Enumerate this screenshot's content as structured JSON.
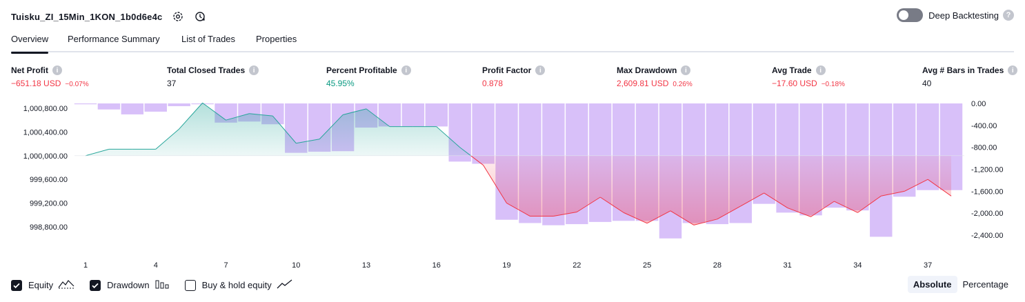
{
  "header": {
    "strategy_title": "Tuisku_ZI_15Min_1KON_1b0d6e4c"
  },
  "deep_backtesting": {
    "label": "Deep Backtesting",
    "help": "?"
  },
  "tabs": [
    {
      "label": "Overview"
    },
    {
      "label": "Performance Summary"
    },
    {
      "label": "List of Trades"
    },
    {
      "label": "Properties"
    }
  ],
  "stats": [
    {
      "label": "Net Profit",
      "value": "−651.18 USD",
      "pct": "−0.07%"
    },
    {
      "label": "Total Closed Trades",
      "value": "37",
      "pct": ""
    },
    {
      "label": "Percent Profitable",
      "value": "45.95%",
      "pct": ""
    },
    {
      "label": "Profit Factor",
      "value": "0.878",
      "pct": ""
    },
    {
      "label": "Max Drawdown",
      "value": "2,609.81 USD",
      "pct": "0.26%"
    },
    {
      "label": "Avg Trade",
      "value": "−17.60 USD",
      "pct": "−0.18%"
    },
    {
      "label": "Avg # Bars in Trades",
      "value": "40",
      "pct": ""
    }
  ],
  "info_glyph": "i",
  "colors": {
    "equity_up": "#26a69a",
    "equity_down": "#f23645",
    "drawdown_bar": "#c9a7f7",
    "value_negative": "#f23645",
    "value_positive": "#089981"
  },
  "chart_data": {
    "type": "line",
    "x_ticks": [
      "1",
      "4",
      "7",
      "10",
      "13",
      "16",
      "19",
      "22",
      "25",
      "28",
      "31",
      "34",
      "37"
    ],
    "left_axis": {
      "ticks": [
        "1,000,800.00",
        "1,000,400.00",
        "1,000,000.00",
        "999,600.00",
        "999,200.00",
        "998,800.00"
      ],
      "tick_values": [
        1000800,
        1000400,
        1000000,
        999600,
        999200,
        998800
      ]
    },
    "right_axis": {
      "ticks": [
        "0.00",
        "-400.00",
        "-800.00",
        "-1,200.00",
        "-1,600.00",
        "-2,000.00",
        "-2,400.00"
      ],
      "tick_values": [
        0,
        -400,
        -800,
        -1200,
        -1600,
        -2000,
        -2400
      ]
    },
    "series": [
      {
        "name": "Equity",
        "axis": "left",
        "x": [
          1,
          2,
          3,
          4,
          5,
          6,
          7,
          8,
          9,
          10,
          11,
          12,
          13,
          14,
          15,
          16,
          17,
          18,
          19,
          20,
          21,
          22,
          23,
          24,
          25,
          26,
          27,
          28,
          29,
          30,
          31,
          32,
          33,
          34,
          35,
          36,
          37,
          38
        ],
        "values": [
          1000000,
          1000110,
          1000110,
          1000110,
          1000450,
          1000890,
          1000600,
          1000710,
          1000670,
          1000210,
          1000280,
          1000690,
          1000790,
          1000490,
          1000490,
          1000490,
          1000140,
          999840,
          999200,
          998980,
          998980,
          999050,
          999300,
          999040,
          998860,
          999070,
          998830,
          998930,
          999150,
          999370,
          999120,
          998970,
          999230,
          999040,
          999320,
          999400,
          999600,
          999320
        ]
      },
      {
        "name": "Drawdown",
        "axis": "right",
        "x": [
          1,
          2,
          3,
          4,
          5,
          6,
          7,
          8,
          9,
          10,
          11,
          12,
          13,
          14,
          15,
          16,
          17,
          18,
          19,
          20,
          21,
          22,
          23,
          24,
          25,
          26,
          27,
          28,
          29,
          30,
          31,
          32,
          33,
          34,
          35,
          36,
          37,
          38
        ],
        "values": [
          0,
          -110,
          -200,
          -150,
          -50,
          0,
          -350,
          -330,
          -380,
          -900,
          -880,
          -870,
          -440,
          -420,
          -420,
          -420,
          -1060,
          -1100,
          -2120,
          -2180,
          -2220,
          -2200,
          -2160,
          -2140,
          -2140,
          -2460,
          -2180,
          -2200,
          -2180,
          -1830,
          -1990,
          -2040,
          -1900,
          -1950,
          -2430,
          -1700,
          -1580,
          -1580
        ]
      }
    ],
    "legend": [
      "Equity",
      "Drawdown",
      "Buy & hold equity"
    ]
  },
  "legend": {
    "equity": "Equity",
    "drawdown": "Drawdown",
    "buy_hold": "Buy & hold equity"
  },
  "modes": {
    "absolute": "Absolute",
    "percentage": "Percentage"
  }
}
